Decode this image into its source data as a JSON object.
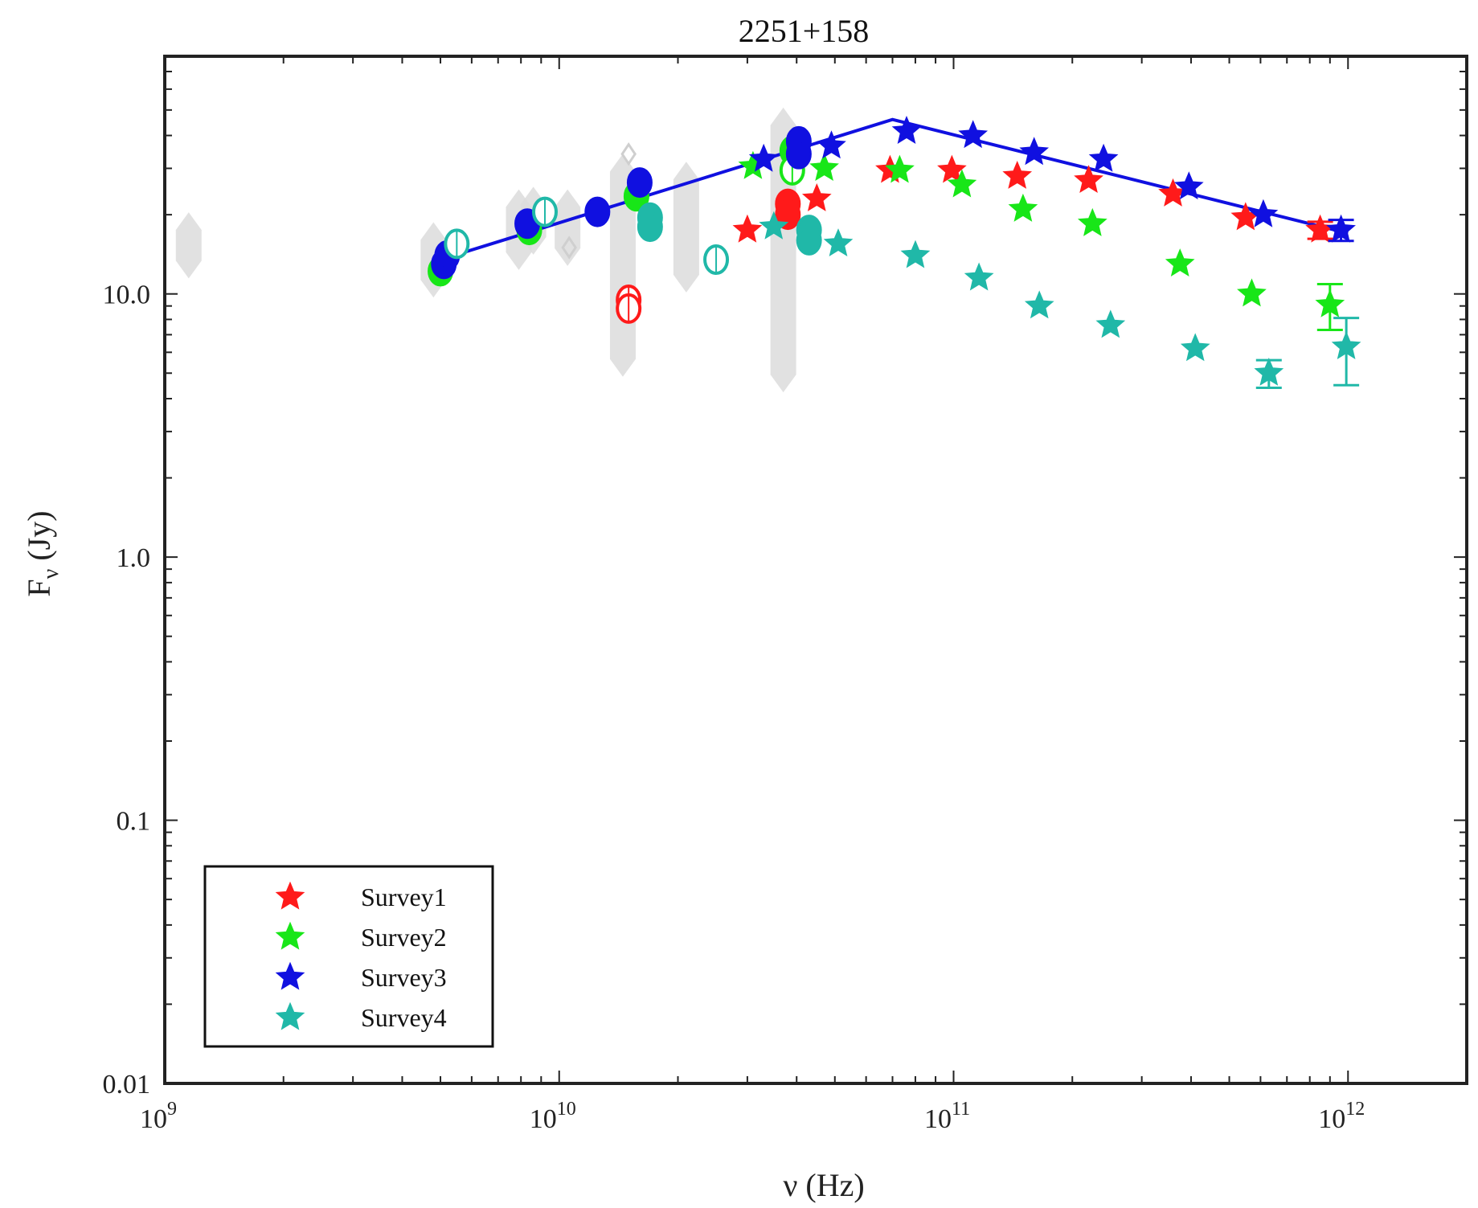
{
  "chart_data": {
    "type": "scatter",
    "title": "2251+158",
    "xlabel": "ν (Hz)",
    "ylabel": "F_ν (Jy)",
    "ylabel_main": "F",
    "ylabel_sub": "ν",
    "ylabel_rest": " (Jy)",
    "xscale": "log",
    "yscale": "log",
    "xlim": [
      1000000000.0,
      2000000000000.0
    ],
    "ylim": [
      0.01,
      80
    ],
    "x_ticks": [
      {
        "value": 1000000000.0,
        "base": "10",
        "exp": "9"
      },
      {
        "value": 10000000000.0,
        "base": "10",
        "exp": "10"
      },
      {
        "value": 100000000000.0,
        "base": "10",
        "exp": "11"
      },
      {
        "value": 1000000000000.0,
        "base": "10",
        "exp": "12"
      }
    ],
    "y_ticks": [
      {
        "value": 0.01,
        "label": "0.01"
      },
      {
        "value": 0.1,
        "label": "0.1"
      },
      {
        "value": 1,
        "label": "1.0"
      },
      {
        "value": 10,
        "label": "10.0"
      }
    ],
    "legend": {
      "position": "bottom-left",
      "entries": [
        {
          "label": "Survey1",
          "color": "#ff1a1a"
        },
        {
          "label": "Survey2",
          "color": "#18e618"
        },
        {
          "label": "Survey3",
          "color": "#1010e0"
        },
        {
          "label": "Survey4",
          "color": "#20b8a8"
        }
      ]
    },
    "archival_ranges": [
      {
        "x": 1150000000.0,
        "y_low": 13,
        "y_high": 18
      },
      {
        "x": 4800000000.0,
        "y_low": 11,
        "y_high": 16.5
      },
      {
        "x": 7900000000.0,
        "y_low": 14,
        "y_high": 22
      },
      {
        "x": 8600000000.0,
        "y_low": 16,
        "y_high": 22.5
      },
      {
        "x": 10500000000.0,
        "y_low": 14.5,
        "y_high": 22
      },
      {
        "x": 14500000000.0,
        "y_low": 5.5,
        "y_high": 30
      },
      {
        "x": 21000000000.0,
        "y_low": 11.5,
        "y_high": 28
      },
      {
        "x": 37000000000.0,
        "y_low": 4.8,
        "y_high": 45
      }
    ],
    "archival_diamonds": [
      {
        "x": 10600000000.0,
        "y": 15
      },
      {
        "x": 15000000000.0,
        "y": 34
      }
    ],
    "best_fit_line": {
      "color": "#1010e0",
      "x": [
        5000000000.0,
        70000000000.0,
        1000000000000.0
      ],
      "y": [
        13.5,
        46,
        17
      ]
    },
    "series": [
      {
        "name": "Survey1",
        "color": "#ff1a1a",
        "stars": [
          {
            "x": 30000000000.0,
            "y": 17.5
          },
          {
            "x": 45000000000.0,
            "y": 23
          },
          {
            "x": 69000000000.0,
            "y": 29.5
          },
          {
            "x": 99000000000.0,
            "y": 29.5
          },
          {
            "x": 145000000000.0,
            "y": 28
          },
          {
            "x": 220000000000.0,
            "y": 27
          },
          {
            "x": 360000000000.0,
            "y": 24
          },
          {
            "x": 550000000000.0,
            "y": 19.5
          },
          {
            "x": 850000000000.0,
            "y": 17.5,
            "err": 1.3
          }
        ],
        "circles": [
          {
            "x": 15000000000.0,
            "y": 9.5,
            "filled": false
          },
          {
            "x": 15000000000.0,
            "y": 8.8,
            "filled": false
          },
          {
            "x": 38000000000.0,
            "y": 22,
            "filled": true
          },
          {
            "x": 38000000000.0,
            "y": 20,
            "filled": true
          }
        ]
      },
      {
        "name": "Survey2",
        "color": "#18e618",
        "stars": [
          {
            "x": 31000000000.0,
            "y": 30.5
          },
          {
            "x": 47000000000.0,
            "y": 30
          },
          {
            "x": 73000000000.0,
            "y": 29.5
          },
          {
            "x": 105000000000.0,
            "y": 26
          },
          {
            "x": 150000000000.0,
            "y": 21
          },
          {
            "x": 225000000000.0,
            "y": 18.5
          },
          {
            "x": 375000000000.0,
            "y": 13
          },
          {
            "x": 570000000000.0,
            "y": 10
          },
          {
            "x": 900000000000.0,
            "y": 9.1,
            "err": 1.8
          }
        ],
        "circles": [
          {
            "x": 5000000000.0,
            "y": 12.2,
            "filled": true
          },
          {
            "x": 8400000000.0,
            "y": 17.5,
            "filled": true
          },
          {
            "x": 15700000000.0,
            "y": 23.5,
            "filled": true
          },
          {
            "x": 39000000000.0,
            "y": 35,
            "filled": true
          },
          {
            "x": 39000000000.0,
            "y": 29.5,
            "filled": false
          }
        ]
      },
      {
        "name": "Survey3",
        "color": "#1010e0",
        "stars": [
          {
            "x": 33000000000.0,
            "y": 32.5
          },
          {
            "x": 49000000000.0,
            "y": 36.5
          },
          {
            "x": 76000000000.0,
            "y": 41.5
          },
          {
            "x": 112000000000.0,
            "y": 40
          },
          {
            "x": 160000000000.0,
            "y": 34.5
          },
          {
            "x": 240000000000.0,
            "y": 32.5
          },
          {
            "x": 395000000000.0,
            "y": 25.5
          },
          {
            "x": 610000000000.0,
            "y": 20
          },
          {
            "x": 960000000000.0,
            "y": 17.5,
            "err": 1.6
          }
        ],
        "circles": [
          {
            "x": 5100000000.0,
            "y": 13,
            "filled": true
          },
          {
            "x": 5200000000.0,
            "y": 14,
            "filled": true
          },
          {
            "x": 8300000000.0,
            "y": 18.5,
            "filled": true
          },
          {
            "x": 12500000000.0,
            "y": 20.5,
            "filled": true
          },
          {
            "x": 16000000000.0,
            "y": 26.5,
            "filled": true
          },
          {
            "x": 40500000000.0,
            "y": 38,
            "filled": true
          },
          {
            "x": 40500000000.0,
            "y": 34,
            "filled": true
          }
        ]
      },
      {
        "name": "Survey4",
        "color": "#20b8a8",
        "stars": [
          {
            "x": 35000000000.0,
            "y": 18
          },
          {
            "x": 51000000000.0,
            "y": 15.5
          },
          {
            "x": 80000000000.0,
            "y": 14
          },
          {
            "x": 116000000000.0,
            "y": 11.5
          },
          {
            "x": 165000000000.0,
            "y": 9
          },
          {
            "x": 250000000000.0,
            "y": 7.6
          },
          {
            "x": 410000000000.0,
            "y": 6.2
          },
          {
            "x": 630000000000.0,
            "y": 5,
            "err": 0.6
          },
          {
            "x": 990000000000.0,
            "y": 6.3,
            "err": 1.8
          }
        ],
        "circles": [
          {
            "x": 5500000000.0,
            "y": 15.5,
            "filled": false
          },
          {
            "x": 9200000000.0,
            "y": 20.5,
            "filled": false
          },
          {
            "x": 17000000000.0,
            "y": 19.5,
            "filled": true
          },
          {
            "x": 17000000000.0,
            "y": 18,
            "filled": true
          },
          {
            "x": 25000000000.0,
            "y": 13.5,
            "filled": false
          },
          {
            "x": 43000000000.0,
            "y": 17.5,
            "filled": true
          },
          {
            "x": 43000000000.0,
            "y": 16,
            "filled": true
          }
        ]
      }
    ]
  }
}
